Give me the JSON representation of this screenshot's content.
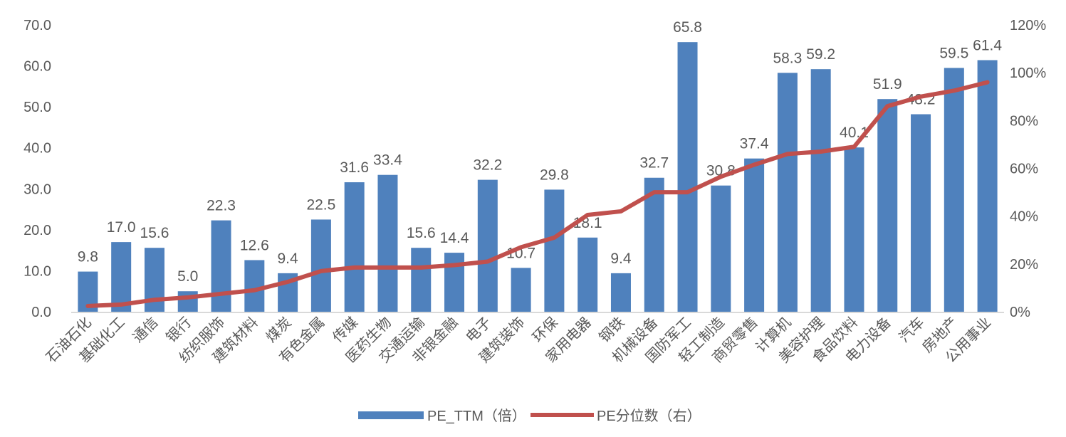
{
  "chart_data": {
    "type": "bar+line",
    "categories": [
      "石油石化",
      "基础化工",
      "通信",
      "银行",
      "纺织服饰",
      "建筑材料",
      "煤炭",
      "有色金属",
      "传媒",
      "医药生物",
      "交通运输",
      "非银金融",
      "电子",
      "建筑装饰",
      "环保",
      "家用电器",
      "钢铁",
      "机械设备",
      "国防军工",
      "轻工制造",
      "商贸零售",
      "计算机",
      "美容护理",
      "食品饮料",
      "电力设备",
      "汽车",
      "房地产",
      "公用事业"
    ],
    "series": [
      {
        "name": "PE_TTM（倍）",
        "type": "bar",
        "axis": "left",
        "color": "#4F81BD",
        "values": [
          9.8,
          17.0,
          15.6,
          5.0,
          22.3,
          12.6,
          9.4,
          22.5,
          31.6,
          33.4,
          15.6,
          14.4,
          32.2,
          10.7,
          29.8,
          18.1,
          9.4,
          32.7,
          65.8,
          30.8,
          37.4,
          58.3,
          59.2,
          40.1,
          51.9,
          48.2,
          59.5,
          61.4
        ]
      },
      {
        "name": "PE分位数（右）",
        "type": "line",
        "axis": "right",
        "color": "#C0504D",
        "values": [
          2.4,
          3.0,
          5.0,
          6.0,
          7.5,
          9.0,
          12.5,
          17.0,
          18.5,
          18.5,
          18.5,
          19.5,
          21.0,
          27.0,
          31.0,
          40.5,
          42.0,
          50.0,
          50.0,
          56.5,
          61.5,
          66.0,
          67.0,
          69.0,
          86.0,
          90.0,
          92.5,
          96.0
        ]
      }
    ],
    "y_left": {
      "min": 0,
      "max": 70,
      "ticks": [
        "0.0",
        "10.0",
        "20.0",
        "30.0",
        "40.0",
        "50.0",
        "60.0",
        "70.0"
      ]
    },
    "y_right": {
      "min": 0,
      "max": 120,
      "ticks": [
        "0%",
        "20%",
        "40%",
        "60%",
        "80%",
        "100%",
        "120%"
      ]
    },
    "grid": false,
    "legend": "bottom"
  }
}
